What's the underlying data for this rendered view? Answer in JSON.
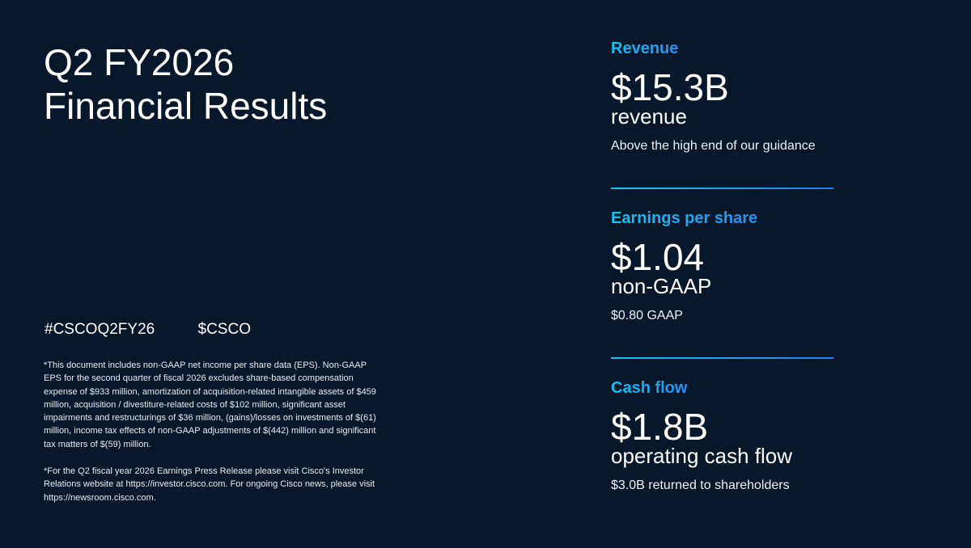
{
  "title": {
    "line1": "Q2 FY2026",
    "line2": "Financial Results"
  },
  "tags": [
    "#CSCOQ2FY26",
    "$CSCO"
  ],
  "footnotes": [
    "*This document includes non-GAAP net income per share data (EPS). Non-GAAP EPS for the second quarter of fiscal 2026 excludes share-based compensation expense of $933 million, amortization of acquisition-related intangible assets of $459 million, acquisition / divestiture-related costs of $102 million, significant asset impairments and restructurings of $36 million, (gains)/losses on investments of $(61) million, income tax effects of non-GAAP adjustments of $(442) million and significant tax matters of $(59) million.",
    "*For the Q2 fiscal year 2026 Earnings Press Release please visit Cisco's Investor Relations website at https://investor.cisco.com. For ongoing Cisco news, please visit https://newsroom.cisco.com."
  ],
  "metrics": [
    {
      "heading": "Revenue",
      "value": "$15.3B",
      "sub": "revenue",
      "note": "Above the high end of our guidance"
    },
    {
      "heading": "Earnings per share",
      "value": "$1.04",
      "sub": "non-GAAP",
      "note": "$0.80 GAAP"
    },
    {
      "heading": "Cash flow",
      "value": "$1.8B",
      "sub": "operating cash flow",
      "note": "$3.0B returned to shareholders"
    }
  ],
  "colors": {
    "background": "#07182d",
    "accent_start": "#11c3f0",
    "accent_end": "#2a8ef0"
  }
}
